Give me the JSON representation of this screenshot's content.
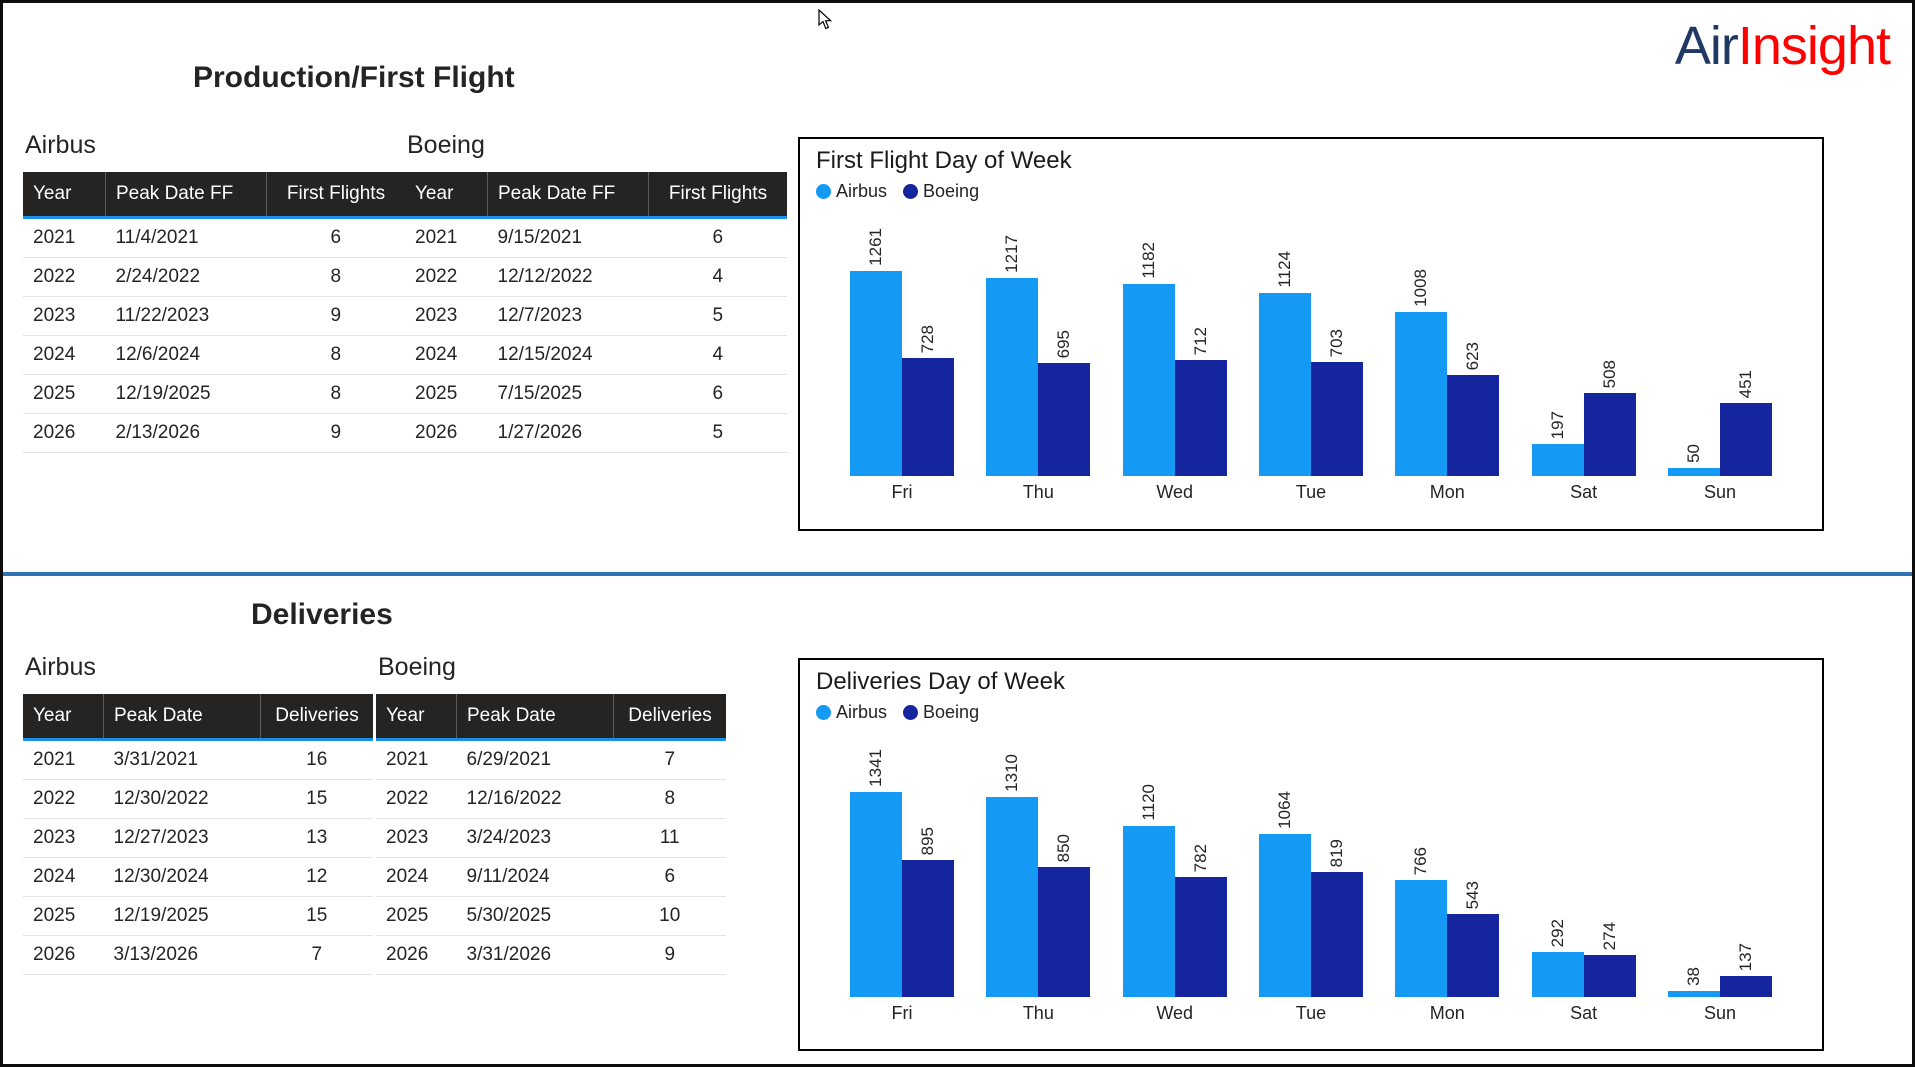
{
  "logo": {
    "air": "Air",
    "insight": "Insight",
    "air_color": "#1F3864",
    "insight_color": "#FF0000"
  },
  "sections": [
    {
      "title": "Production/First Flight"
    },
    {
      "title": "Deliveries"
    }
  ],
  "colors": {
    "airbus": "#1499F5",
    "boeing": "#15259E",
    "divider": "#2E74B5",
    "table_header_bg": "#252423",
    "table_header_underline": "#1A8FE8"
  },
  "tables": {
    "ff_airbus": {
      "title": "Airbus",
      "columns": [
        "Year",
        "Peak Date FF",
        "First Flights"
      ],
      "rows": [
        [
          "2021",
          "11/4/2021",
          "6"
        ],
        [
          "2022",
          "2/24/2022",
          "8"
        ],
        [
          "2023",
          "11/22/2023",
          "9"
        ],
        [
          "2024",
          "12/6/2024",
          "8"
        ],
        [
          "2025",
          "12/19/2025",
          "8"
        ],
        [
          "2026",
          "2/13/2026",
          "9"
        ]
      ]
    },
    "ff_boeing": {
      "title": "Boeing",
      "columns": [
        "Year",
        "Peak Date FF",
        "First Flights"
      ],
      "rows": [
        [
          "2021",
          "9/15/2021",
          "6"
        ],
        [
          "2022",
          "12/12/2022",
          "4"
        ],
        [
          "2023",
          "12/7/2023",
          "5"
        ],
        [
          "2024",
          "12/15/2024",
          "4"
        ],
        [
          "2025",
          "7/15/2025",
          "6"
        ],
        [
          "2026",
          "1/27/2026",
          "5"
        ]
      ]
    },
    "del_airbus": {
      "title": "Airbus",
      "columns": [
        "Year",
        "Peak Date",
        "Deliveries"
      ],
      "rows": [
        [
          "2021",
          "3/31/2021",
          "16"
        ],
        [
          "2022",
          "12/30/2022",
          "15"
        ],
        [
          "2023",
          "12/27/2023",
          "13"
        ],
        [
          "2024",
          "12/30/2024",
          "12"
        ],
        [
          "2025",
          "12/19/2025",
          "15"
        ],
        [
          "2026",
          "3/13/2026",
          "7"
        ]
      ]
    },
    "del_boeing": {
      "title": "Boeing",
      "columns": [
        "Year",
        "Peak Date",
        "Deliveries"
      ],
      "rows": [
        [
          "2021",
          "6/29/2021",
          "7"
        ],
        [
          "2022",
          "12/16/2022",
          "8"
        ],
        [
          "2023",
          "3/24/2023",
          "11"
        ],
        [
          "2024",
          "9/11/2024",
          "6"
        ],
        [
          "2025",
          "5/30/2025",
          "10"
        ],
        [
          "2026",
          "3/31/2026",
          "9"
        ]
      ]
    }
  },
  "chart_data": [
    {
      "type": "bar",
      "title": "First Flight Day of Week",
      "categories": [
        "Fri",
        "Thu",
        "Wed",
        "Tue",
        "Mon",
        "Sat",
        "Sun"
      ],
      "series": [
        {
          "name": "Airbus",
          "color": "#1499F5",
          "values": [
            1261,
            1217,
            1182,
            1124,
            1008,
            197,
            50
          ]
        },
        {
          "name": "Boeing",
          "color": "#15259E",
          "values": [
            728,
            695,
            712,
            703,
            623,
            508,
            451
          ]
        }
      ],
      "xlabel": "",
      "ylabel": "",
      "grid": false,
      "legend_position": "top-left",
      "data_labels": "rotated-vertical"
    },
    {
      "type": "bar",
      "title": "Deliveries Day of Week",
      "categories": [
        "Fri",
        "Thu",
        "Wed",
        "Tue",
        "Mon",
        "Sat",
        "Sun"
      ],
      "series": [
        {
          "name": "Airbus",
          "color": "#1499F5",
          "values": [
            1341,
            1310,
            1120,
            1064,
            766,
            292,
            38
          ]
        },
        {
          "name": "Boeing",
          "color": "#15259E",
          "values": [
            895,
            850,
            782,
            819,
            543,
            274,
            137
          ]
        }
      ],
      "xlabel": "",
      "ylabel": "",
      "grid": false,
      "legend_position": "top-left",
      "data_labels": "rotated-vertical"
    }
  ]
}
